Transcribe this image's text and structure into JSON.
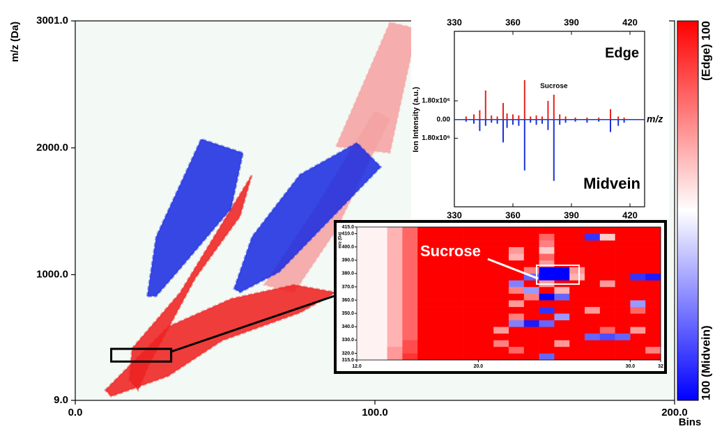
{
  "chart_data": [
    {
      "type": "heatmap",
      "x_label": "Bins",
      "y_label": "m/z (Da)",
      "xlim": [
        0,
        200
      ],
      "xticks": [
        {
          "value": 0,
          "label": "0.0"
        },
        {
          "value": 100,
          "label": "100.0"
        },
        {
          "value": 200,
          "label": "200.0"
        }
      ],
      "ylim": [
        9,
        3001
      ],
      "yticks": [
        {
          "value": 9,
          "label": "9.0"
        },
        {
          "value": 1000,
          "label": "1000.0"
        },
        {
          "value": 2000,
          "label": "2000.0"
        },
        {
          "value": 3001,
          "label": "3001.0"
        }
      ],
      "background": "#f3faf5",
      "zlim": [
        -100,
        100
      ],
      "colors": [
        "#0000ff",
        "#ffffff",
        "#ff0000"
      ],
      "colorbar_labels": [
        "(Edge) 100",
        "100 (Midvein)"
      ],
      "regions": [
        {
          "color": "#f5a3a3",
          "x": [
            63,
            80,
            100,
            105,
            87,
            73
          ],
          "y": [
            920,
            1520,
            2290,
            2230,
            1350,
            860
          ]
        },
        {
          "color": "#f5a3a3",
          "x": [
            87,
            105,
            114,
            105
          ],
          "y": [
            2010,
            2990,
            2940,
            1960
          ]
        },
        {
          "color": "#ee2222",
          "x": [
            18,
            19,
            35,
            52,
            59,
            55,
            40,
            25,
            21
          ],
          "y": [
            170,
            420,
            860,
            1520,
            1790,
            1460,
            970,
            310,
            90
          ]
        },
        {
          "color": "#ee2222",
          "x": [
            10,
            31,
            52,
            73,
            87,
            75,
            49,
            31,
            12
          ],
          "y": [
            90,
            590,
            810,
            920,
            860,
            700,
            480,
            200,
            40
          ]
        },
        {
          "color": "#1c2de0",
          "x": [
            24,
            27,
            42,
            56,
            52,
            34,
            27
          ],
          "y": [
            830,
            1300,
            2070,
            1960,
            1520,
            1020,
            830
          ]
        },
        {
          "color": "#1c2de0",
          "x": [
            53,
            59,
            75,
            94,
            102,
            84,
            68,
            55
          ],
          "y": [
            890,
            1300,
            1790,
            2040,
            1850,
            1410,
            1020,
            860
          ]
        }
      ]
    },
    {
      "type": "bar",
      "x_label": "m/z",
      "y_label": "Ion Intensity (a.u.)",
      "xlim": [
        330,
        427.5
      ],
      "xticks": [
        330,
        360,
        390,
        420
      ],
      "ylim": [
        -8400000,
        8500000
      ],
      "yticks": [
        {
          "value": 1800000,
          "label": "1.80x10⁶"
        },
        {
          "value": 0,
          "label": "0.00"
        },
        {
          "value": -1800000,
          "label": "1.80x10⁶"
        }
      ],
      "x": [
        336,
        340,
        343,
        346,
        349,
        352,
        355,
        357,
        360,
        363,
        366,
        369,
        372,
        375,
        378,
        381,
        384,
        387,
        392,
        398,
        404,
        410,
        414,
        417
      ],
      "series": [
        {
          "name": "Edge",
          "color": "#e8201c",
          "values": [
            300000,
            500000,
            900000,
            2800000,
            400000,
            300000,
            1600000,
            600000,
            500000,
            400000,
            3800000,
            300000,
            400000,
            300000,
            1800000,
            2400000,
            500000,
            300000,
            200000,
            200000,
            200000,
            1000000,
            300000,
            200000
          ]
        },
        {
          "name": "Midvein",
          "color": "#1a30d8",
          "values": [
            -200000,
            -400000,
            -1100000,
            -600000,
            -300000,
            -400000,
            -2200000,
            -800000,
            -500000,
            -600000,
            -4900000,
            -300000,
            -500000,
            -400000,
            -1000000,
            -5900000,
            -500000,
            -300000,
            -200000,
            -300000,
            -200000,
            -1200000,
            -600000,
            -300000
          ]
        }
      ],
      "annotations": [
        {
          "text": "Sucrose",
          "x": 381
        }
      ]
    },
    {
      "type": "heatmap",
      "y_label": "m/z (Da)",
      "annotation": "Sucrose",
      "xlim": [
        12,
        32
      ],
      "xticks": [
        {
          "value": 12,
          "label": "12.0"
        },
        {
          "value": 20,
          "label": "20.0"
        },
        {
          "value": 30,
          "label": "30.0"
        },
        {
          "value": 32,
          "label": "32"
        }
      ],
      "ylim": [
        315,
        415
      ],
      "yticks": [
        {
          "value": 315,
          "label": "315.0"
        },
        {
          "value": 320,
          "label": "320.0"
        },
        {
          "value": 330,
          "label": "330.0"
        },
        {
          "value": 340,
          "label": "340.0"
        },
        {
          "value": 350,
          "label": "350.0"
        },
        {
          "value": 360,
          "label": "360.0"
        },
        {
          "value": 370,
          "label": "370.0"
        },
        {
          "value": 380,
          "label": "380.0"
        },
        {
          "value": 390,
          "label": "390.0"
        },
        {
          "value": 400,
          "label": "400.0"
        },
        {
          "value": 410,
          "label": "410.0"
        },
        {
          "value": 415,
          "label": "415.0"
        }
      ],
      "xbins": [
        12,
        13,
        14,
        15,
        16,
        17,
        18,
        19,
        20,
        21,
        22,
        23,
        24,
        25,
        26,
        27,
        28,
        29,
        30,
        31,
        32
      ],
      "ybins": [
        315,
        320,
        325,
        330,
        335,
        340,
        345,
        350,
        355,
        360,
        365,
        370,
        375,
        380,
        385,
        390,
        395,
        400,
        405,
        410,
        415
      ],
      "z": [
        [
          5,
          5,
          40,
          80,
          100,
          100,
          100,
          100,
          100,
          100,
          100,
          100,
          -60,
          100,
          100,
          100,
          100,
          100,
          100,
          100
        ],
        [
          5,
          5,
          40,
          70,
          100,
          100,
          100,
          100,
          100,
          100,
          60,
          100,
          100,
          100,
          100,
          100,
          100,
          100,
          100,
          50
        ],
        [
          5,
          5,
          30,
          70,
          100,
          100,
          100,
          100,
          100,
          50,
          100,
          100,
          100,
          40,
          100,
          100,
          100,
          100,
          100,
          100
        ],
        [
          5,
          5,
          30,
          60,
          100,
          100,
          100,
          100,
          100,
          100,
          100,
          100,
          100,
          100,
          100,
          -60,
          -70,
          -60,
          100,
          100
        ],
        [
          5,
          5,
          30,
          60,
          100,
          100,
          100,
          100,
          100,
          40,
          100,
          100,
          100,
          100,
          100,
          100,
          60,
          100,
          40,
          100
        ],
        [
          5,
          5,
          30,
          60,
          100,
          100,
          100,
          100,
          100,
          100,
          -50,
          -90,
          -60,
          100,
          100,
          100,
          100,
          100,
          100,
          100
        ],
        [
          5,
          5,
          30,
          60,
          100,
          100,
          100,
          100,
          100,
          100,
          50,
          100,
          100,
          -40,
          100,
          100,
          100,
          100,
          100,
          100
        ],
        [
          5,
          5,
          30,
          60,
          100,
          100,
          100,
          100,
          100,
          100,
          100,
          100,
          -80,
          100,
          100,
          40,
          100,
          100,
          60,
          100
        ],
        [
          5,
          5,
          30,
          60,
          100,
          100,
          100,
          100,
          100,
          100,
          40,
          100,
          100,
          100,
          100,
          100,
          100,
          100,
          -40,
          100
        ],
        [
          5,
          5,
          30,
          60,
          100,
          100,
          100,
          100,
          100,
          100,
          100,
          50,
          -100,
          -60,
          100,
          100,
          100,
          100,
          100,
          100
        ],
        [
          5,
          5,
          30,
          60,
          100,
          100,
          100,
          100,
          100,
          100,
          50,
          -40,
          100,
          30,
          100,
          100,
          100,
          100,
          100,
          100
        ],
        [
          5,
          5,
          30,
          60,
          100,
          100,
          100,
          100,
          100,
          100,
          -50,
          100,
          40,
          100,
          100,
          100,
          40,
          100,
          100,
          100
        ],
        [
          5,
          5,
          30,
          60,
          100,
          100,
          100,
          100,
          100,
          100,
          100,
          -60,
          -100,
          -100,
          30,
          100,
          100,
          100,
          -80,
          -90
        ],
        [
          5,
          5,
          30,
          60,
          100,
          100,
          100,
          100,
          100,
          100,
          100,
          50,
          -100,
          -100,
          40,
          100,
          100,
          100,
          100,
          100
        ],
        [
          5,
          5,
          30,
          60,
          100,
          100,
          100,
          100,
          100,
          100,
          100,
          100,
          40,
          100,
          100,
          100,
          100,
          100,
          100,
          100
        ],
        [
          5,
          5,
          30,
          60,
          100,
          100,
          100,
          100,
          100,
          100,
          30,
          100,
          60,
          100,
          100,
          100,
          100,
          100,
          100,
          100
        ],
        [
          5,
          5,
          30,
          60,
          100,
          100,
          100,
          100,
          100,
          100,
          40,
          100,
          20,
          100,
          100,
          100,
          100,
          100,
          100,
          100
        ],
        [
          5,
          5,
          30,
          60,
          100,
          100,
          100,
          100,
          100,
          100,
          100,
          100,
          50,
          100,
          100,
          100,
          100,
          100,
          100,
          100
        ],
        [
          5,
          5,
          30,
          60,
          100,
          100,
          100,
          100,
          100,
          100,
          100,
          100,
          60,
          100,
          100,
          -80,
          20,
          100,
          100,
          100
        ],
        [
          5,
          5,
          30,
          60,
          100,
          100,
          100,
          100,
          100,
          100,
          100,
          100,
          100,
          100,
          100,
          100,
          100,
          100,
          100,
          100
        ]
      ]
    }
  ]
}
